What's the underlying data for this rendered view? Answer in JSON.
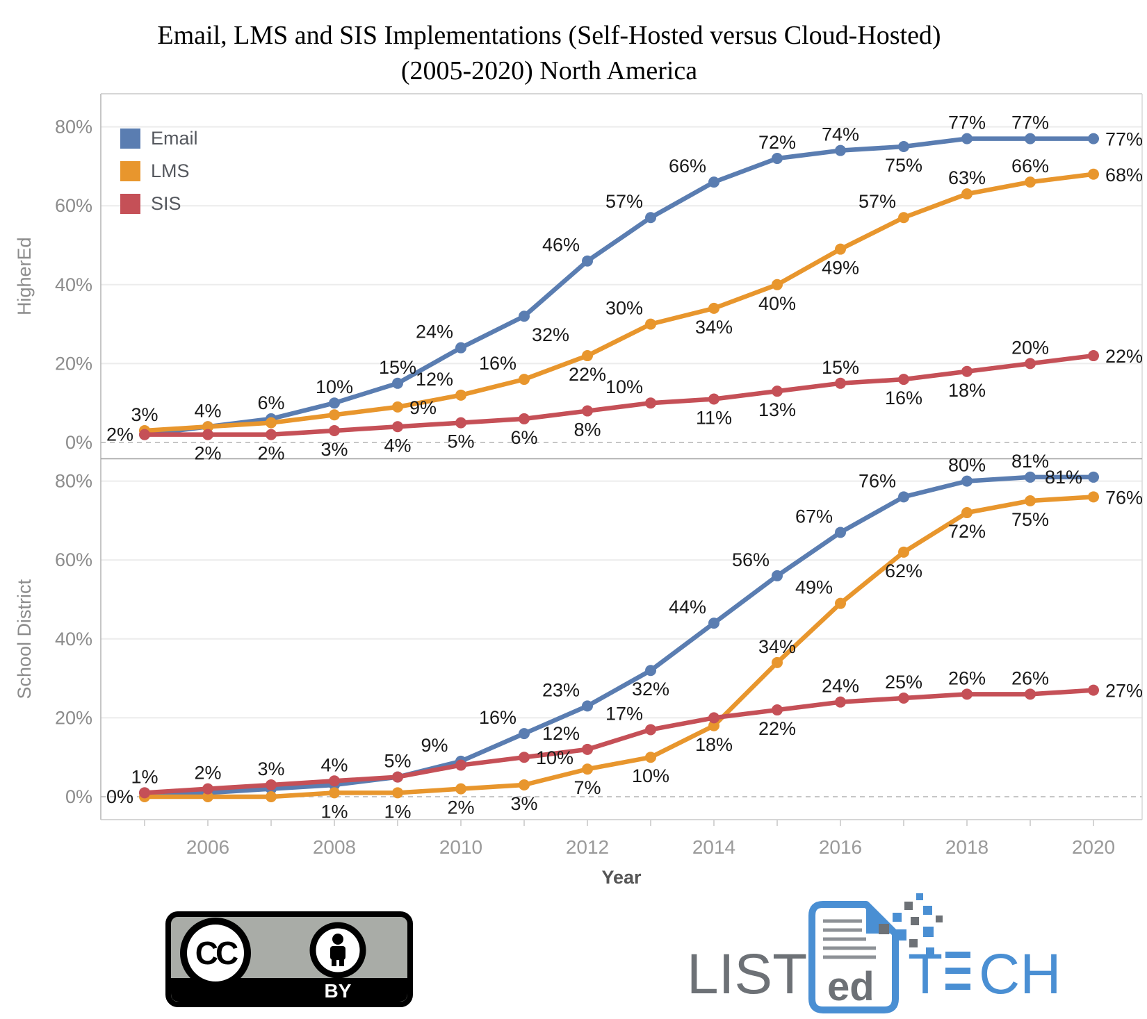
{
  "title": {
    "line1": "Email, LMS and SIS Implementations (Self-Hosted versus Cloud-Hosted)",
    "line2": "(2005-2020) North America"
  },
  "legend": {
    "items": [
      {
        "label": "Email",
        "color": "#5a7db1"
      },
      {
        "label": "LMS",
        "color": "#e8962d"
      },
      {
        "label": "SIS",
        "color": "#c55057"
      }
    ]
  },
  "chart_data": {
    "type": "line",
    "x": [
      2005,
      2006,
      2007,
      2008,
      2009,
      2010,
      2011,
      2012,
      2013,
      2014,
      2015,
      2016,
      2017,
      2018,
      2019,
      2020
    ],
    "x_axis": {
      "title": "Year",
      "tick_labels": [
        "2006",
        "2008",
        "2010",
        "2012",
        "2014",
        "2016",
        "2018",
        "2020"
      ]
    },
    "y_axis": {
      "tick_labels": [
        "0%",
        "20%",
        "40%",
        "60%",
        "80%"
      ],
      "tick_values": [
        0,
        20,
        40,
        60,
        80
      ],
      "ylim": [
        0,
        88
      ],
      "unit": "%"
    },
    "grid": "horizontal",
    "legend_position": "top-left-inside",
    "panels": [
      {
        "row_label": "HigherEd",
        "series": [
          {
            "name": "Email",
            "color": "#5a7db1",
            "values": [
              2,
              4,
              6,
              10,
              15,
              24,
              32,
              46,
              57,
              66,
              72,
              74,
              75,
              77,
              77,
              77
            ],
            "labels": [
              "2%",
              "4%",
              "6%",
              "10%",
              "15%",
              "24%",
              "32%",
              "46%",
              "57%",
              "66%",
              "72%",
              "74%",
              "75%",
              "77%",
              "77%",
              "77%"
            ],
            "label_pos": [
              "left",
              "above",
              "above",
              "above",
              "above",
              "above-left",
              "below-right",
              "above-left",
              "above-left",
              "above-left",
              "above",
              "above",
              "below",
              "above",
              "above",
              "right"
            ]
          },
          {
            "name": "LMS",
            "color": "#e8962d",
            "values": [
              3,
              4,
              5,
              7,
              9,
              12,
              16,
              22,
              30,
              34,
              40,
              49,
              57,
              63,
              66,
              68
            ],
            "labels": [
              "3%",
              null,
              null,
              null,
              "9%",
              "12%",
              "16%",
              "22%",
              "30%",
              "34%",
              "40%",
              "49%",
              "57%",
              "63%",
              "66%",
              "68%"
            ],
            "label_pos": [
              "above",
              null,
              null,
              null,
              "right",
              "above-left",
              "above-left",
              "below",
              "above-left",
              "below",
              "below",
              "below",
              "above-left",
              "above",
              "above",
              "right"
            ]
          },
          {
            "name": "SIS",
            "color": "#c55057",
            "values": [
              2,
              2,
              2,
              3,
              4,
              5,
              6,
              8,
              10,
              11,
              13,
              15,
              16,
              18,
              20,
              22
            ],
            "labels": [
              null,
              "2%",
              "2%",
              "3%",
              "4%",
              "5%",
              "6%",
              "8%",
              "10%",
              "11%",
              "13%",
              "15%",
              "16%",
              "18%",
              "20%",
              "22%"
            ],
            "label_pos": [
              null,
              "below",
              "below",
              "below",
              "below",
              "below",
              "below",
              "below",
              "above-left",
              "below",
              "below",
              "above",
              "below",
              "below",
              "above",
              "right"
            ]
          }
        ]
      },
      {
        "row_label": "School District",
        "series": [
          {
            "name": "Email",
            "color": "#5a7db1",
            "values": [
              1,
              1,
              2,
              3,
              5,
              9,
              16,
              23,
              32,
              44,
              56,
              67,
              76,
              80,
              81,
              81
            ],
            "labels": [
              null,
              null,
              null,
              null,
              null,
              "9%",
              "16%",
              "23%",
              "32%",
              "44%",
              "56%",
              "67%",
              "76%",
              "80%",
              "81%",
              "81%"
            ],
            "label_pos": [
              null,
              null,
              null,
              null,
              null,
              "above-left",
              "above-left",
              "above-left",
              "below",
              "above-left",
              "above-left",
              "above-left",
              "above-left",
              "above",
              "above",
              "left"
            ]
          },
          {
            "name": "LMS",
            "color": "#e8962d",
            "values": [
              0,
              0,
              0,
              1,
              1,
              2,
              3,
              7,
              10,
              18,
              34,
              49,
              62,
              72,
              75,
              76
            ],
            "labels": [
              "0%",
              null,
              null,
              "1%",
              "1%",
              "2%",
              "3%",
              "7%",
              "10%",
              "18%",
              "34%",
              "49%",
              "62%",
              "72%",
              "75%",
              "76%"
            ],
            "label_pos": [
              "left",
              null,
              null,
              "below",
              "below",
              "below",
              "below",
              "below",
              "below",
              "below",
              "above",
              "above-left",
              "below",
              "below",
              "below",
              "right"
            ]
          },
          {
            "name": "SIS",
            "color": "#c55057",
            "values": [
              1,
              2,
              3,
              4,
              5,
              8,
              10,
              12,
              17,
              20,
              22,
              24,
              25,
              26,
              26,
              27
            ],
            "labels": [
              "1%",
              "2%",
              "3%",
              "4%",
              "5%",
              null,
              "10%",
              "12%",
              "17%",
              null,
              "22%",
              "24%",
              "25%",
              "26%",
              "26%",
              "27%"
            ],
            "label_pos": [
              "above",
              "above",
              "above",
              "above",
              "above",
              null,
              "right",
              "above-left",
              "above-left",
              null,
              "below",
              "above",
              "above",
              "above",
              "above",
              "right"
            ]
          }
        ]
      }
    ]
  },
  "footer": {
    "cc_badge": {
      "cc": "CC",
      "by": "BY"
    },
    "logo": {
      "list": "LIST",
      "ed": "ed",
      "tech_t": "T",
      "tech_ch": "CH"
    }
  },
  "colors": {
    "email": "#5a7db1",
    "lms": "#e8962d",
    "sis": "#c55057",
    "grid": "#ececec",
    "zero_line": "#c6c6c6",
    "axis_text": "#8c8c8c",
    "data_label": "#1a1a1a",
    "logo_blue": "#4a8fd3",
    "logo_gray": "#6d7176"
  }
}
